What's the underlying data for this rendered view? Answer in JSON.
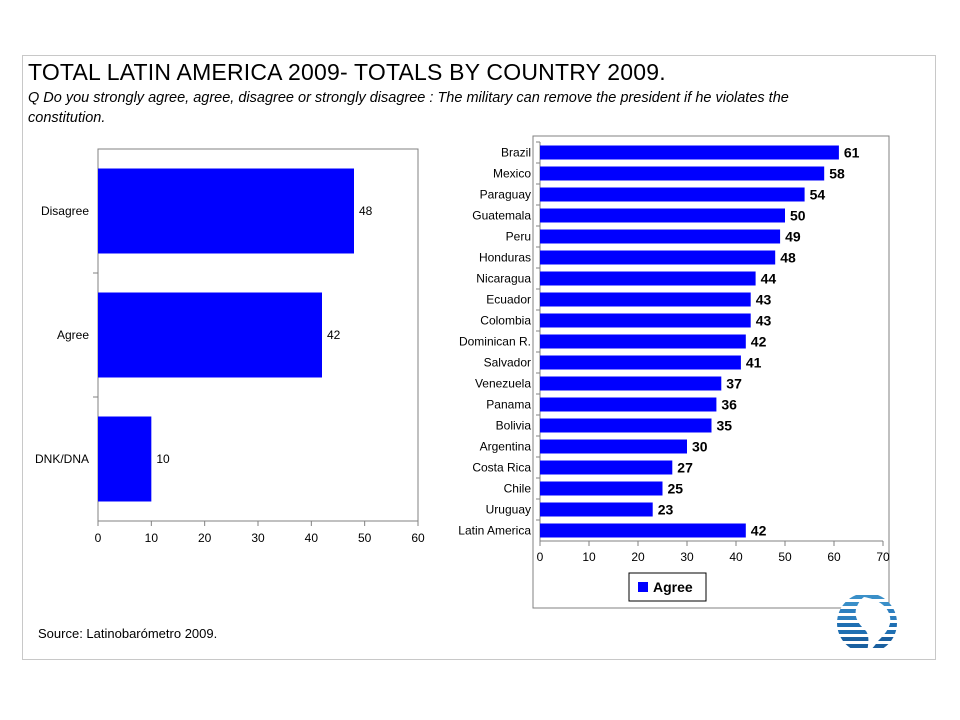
{
  "page": {
    "title": "TOTAL  LATIN AMERICA 2009- TOTALS BY COUNTRY 2009.",
    "question": "Q  Do you strongly agree, agree, disagree or strongly disagree : The military can remove the president if he violates the constitution.",
    "source": "Source: Latinobarómetro 2009."
  },
  "chart_data": [
    {
      "type": "bar",
      "orientation": "horizontal",
      "categories": [
        "Disagree",
        "Agree",
        "DNK/DNA"
      ],
      "values": [
        48,
        42,
        10
      ],
      "xlim": [
        0,
        60
      ],
      "xticks": [
        0,
        10,
        20,
        30,
        40,
        50,
        60
      ],
      "grid": false,
      "bar_color": "#0000ff"
    },
    {
      "type": "bar",
      "orientation": "horizontal",
      "categories": [
        "Brazil",
        "Mexico",
        "Paraguay",
        "Guatemala",
        "Peru",
        "Honduras",
        "Nicaragua",
        "Ecuador",
        "Colombia",
        "Dominican R.",
        "Salvador",
        "Venezuela",
        "Panama",
        "Bolivia",
        "Argentina",
        "Costa Rica",
        "Chile",
        "Uruguay",
        "Latin America"
      ],
      "series": [
        {
          "name": "Agree",
          "values": [
            61,
            58,
            54,
            50,
            49,
            48,
            44,
            43,
            43,
            42,
            41,
            37,
            36,
            35,
            30,
            27,
            25,
            23,
            42
          ]
        }
      ],
      "xlim": [
        0,
        70
      ],
      "xticks": [
        0,
        10,
        20,
        30,
        40,
        50,
        60,
        70
      ],
      "legend": {
        "placement": "bottom",
        "label": "Agree"
      },
      "grid": false,
      "bar_color": "#0000ff"
    }
  ]
}
